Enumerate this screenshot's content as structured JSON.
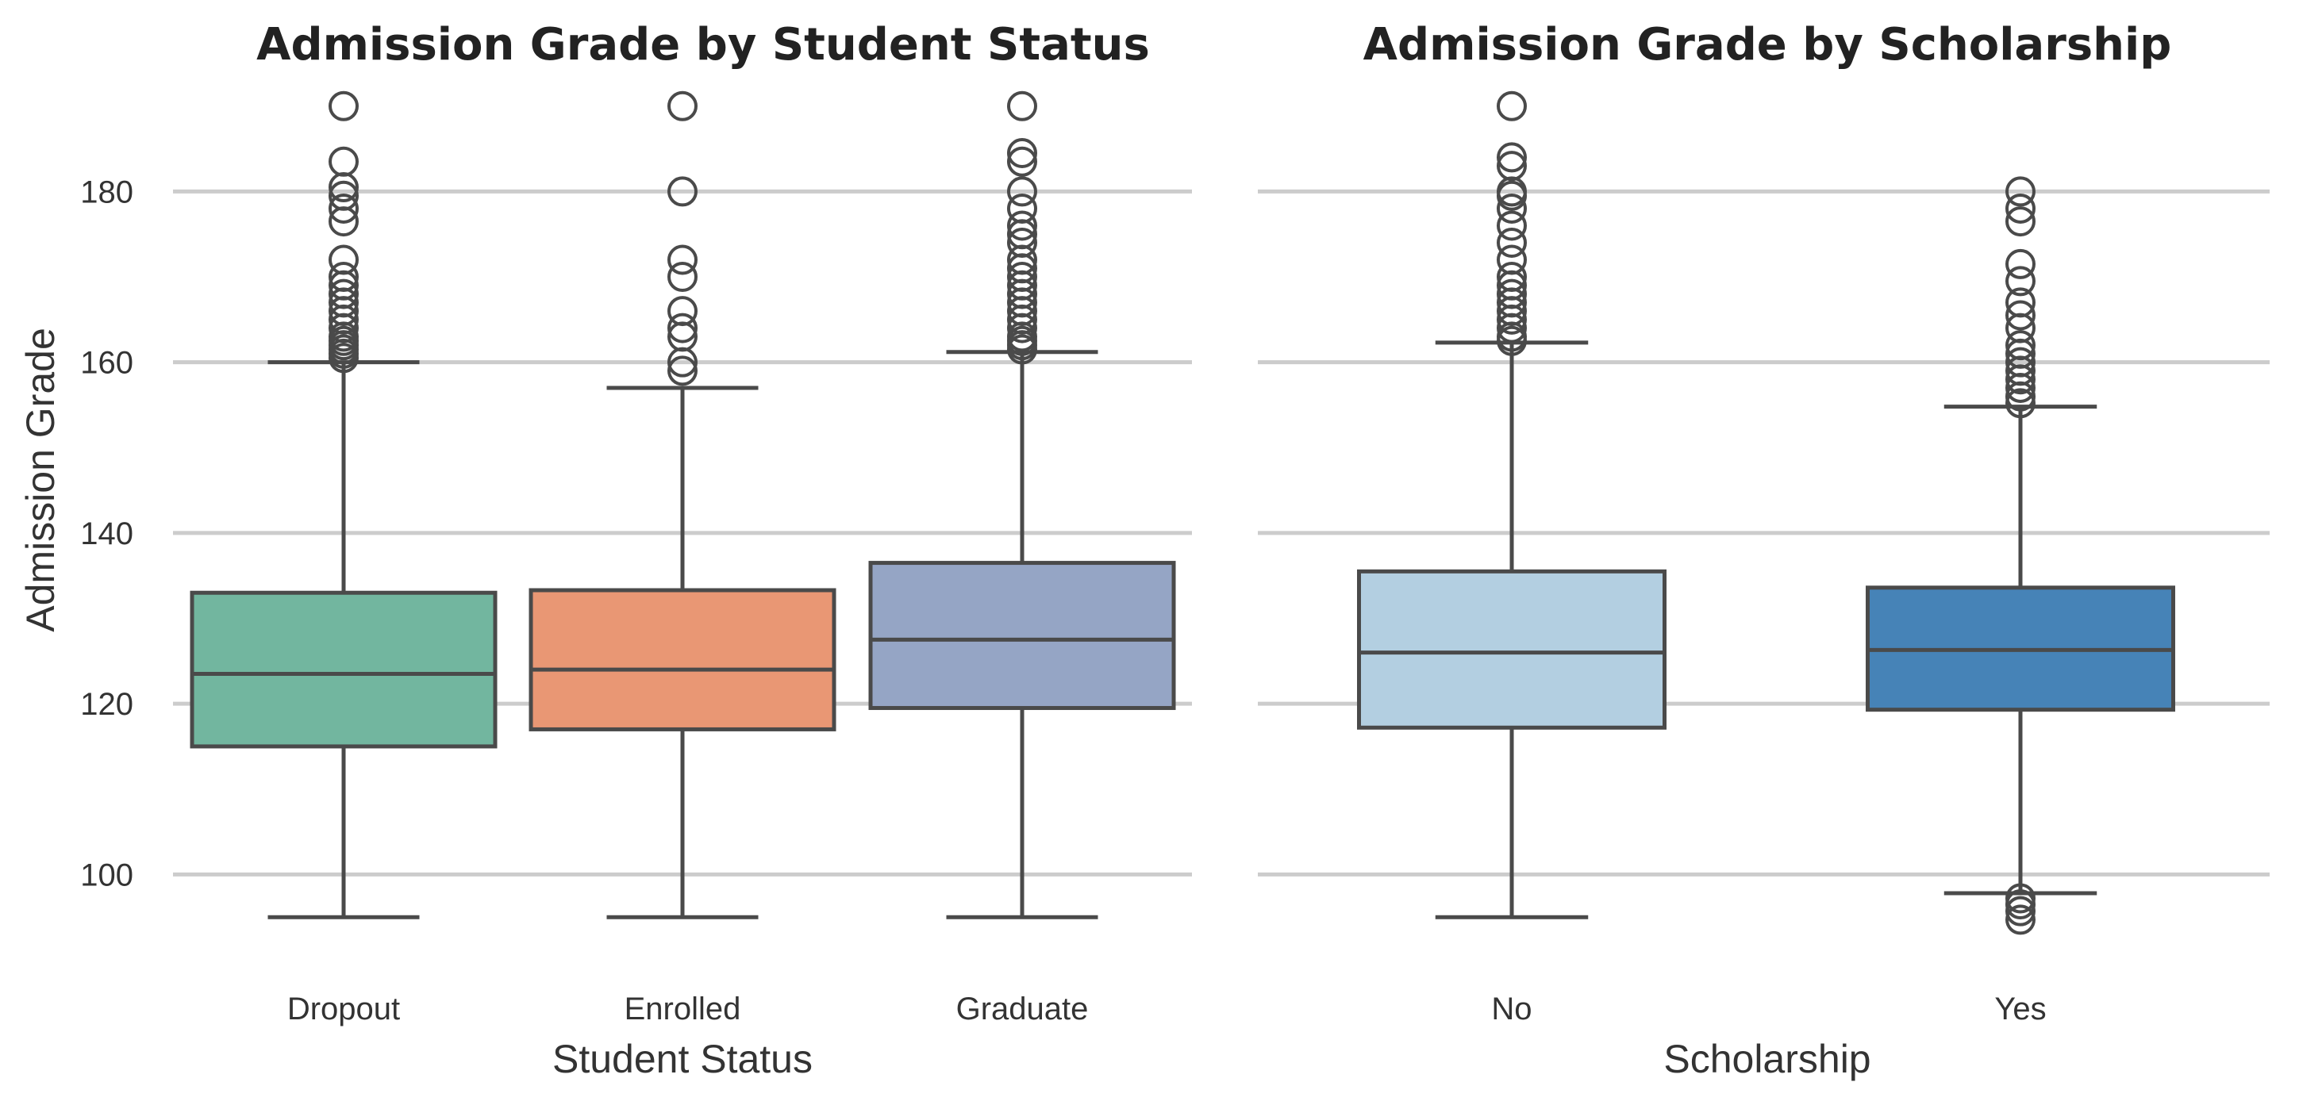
{
  "chart_data": [
    {
      "type": "box",
      "title": "Admission Grade by Student Status",
      "xlabel": "Student Status",
      "ylabel": "Admission Grade",
      "ylim": [
        90,
        195
      ],
      "yticks": [
        100,
        120,
        140,
        160,
        180
      ],
      "grid": true,
      "categories": [
        "Dropout",
        "Enrolled",
        "Graduate"
      ],
      "colors": [
        "#72b69f",
        "#e99774",
        "#95a5c5"
      ],
      "boxes": [
        {
          "whisker_low": 95,
          "q1": 115,
          "median": 123.5,
          "q3": 133,
          "whisker_high": 160,
          "outliers": [
            160.5,
            161,
            161.5,
            162,
            162.5,
            163,
            164,
            165,
            166,
            167,
            168,
            169,
            170,
            172,
            176.5,
            178,
            179.5,
            180.5,
            183.5,
            190
          ]
        },
        {
          "whisker_low": 95,
          "q1": 117,
          "median": 124,
          "q3": 133.3,
          "whisker_high": 157,
          "outliers": [
            159,
            160,
            163,
            164,
            166,
            170,
            172,
            180,
            190
          ]
        },
        {
          "whisker_low": 95,
          "q1": 119.5,
          "median": 127.5,
          "q3": 136.5,
          "whisker_high": 161.2,
          "outliers": [
            161.5,
            162,
            162.5,
            163,
            164,
            165,
            166,
            167,
            168,
            169,
            170,
            171,
            172,
            174,
            175,
            176,
            178,
            180,
            183.5,
            184.5,
            190
          ]
        }
      ]
    },
    {
      "type": "box",
      "title": "Admission Grade by Scholarship",
      "xlabel": "Scholarship",
      "ylabel": "",
      "ylim": [
        90,
        195
      ],
      "yticks": [
        100,
        120,
        140,
        160,
        180
      ],
      "grid": true,
      "categories": [
        "No",
        "Yes"
      ],
      "colors": [
        "#b3cfe1",
        "#4683b7"
      ],
      "boxes": [
        {
          "whisker_low": 95,
          "q1": 117.2,
          "median": 126,
          "q3": 135.5,
          "whisker_high": 162.3,
          "outliers": [
            162.5,
            163,
            164,
            165,
            166,
            167,
            168,
            169,
            170,
            172,
            174,
            176,
            178,
            179.5,
            180,
            183,
            184,
            190
          ]
        },
        {
          "whisker_low": 97.8,
          "q1": 119.3,
          "median": 126.3,
          "q3": 133.6,
          "whisker_high": 154.8,
          "outliers": [
            94.7,
            95.7,
            96.5,
            97.2,
            155.2,
            156,
            157,
            158,
            159,
            160,
            161,
            162,
            164,
            165.5,
            167,
            169.5,
            171.5,
            176.5,
            178,
            180
          ]
        }
      ]
    }
  ]
}
